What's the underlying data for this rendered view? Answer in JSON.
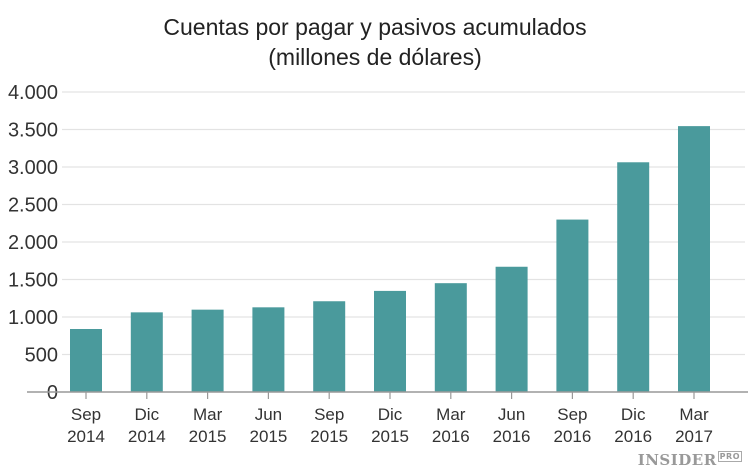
{
  "chart_data": {
    "type": "bar",
    "title": [
      "Cuentas por pagar y pasivos acumulados",
      "(millones de dólares)"
    ],
    "categories": [
      [
        "Sep",
        "2014"
      ],
      [
        "Dic",
        "2014"
      ],
      [
        "Mar",
        "2015"
      ],
      [
        "Jun",
        "2015"
      ],
      [
        "Sep",
        "2015"
      ],
      [
        "Dic",
        "2015"
      ],
      [
        "Mar",
        "2016"
      ],
      [
        "Jun",
        "2016"
      ],
      [
        "Sep",
        "2016"
      ],
      [
        "Dic",
        "2016"
      ],
      [
        "Mar",
        "2017"
      ]
    ],
    "values": [
      840,
      1062,
      1098,
      1129,
      1210,
      1348,
      1451,
      1670,
      2299,
      3063,
      3545
    ],
    "ylim": [
      0,
      4000
    ],
    "yticks": [
      0,
      500,
      1000,
      1500,
      2000,
      2500,
      3000,
      3500,
      4000
    ],
    "ytick_labels": [
      "0",
      "500",
      "1.000",
      "1.500",
      "2.000",
      "2.500",
      "3.000",
      "3.500",
      "4.000"
    ],
    "grid": true,
    "bar_color": "#4a9a9c",
    "xlabel": "",
    "ylabel": ""
  },
  "logo": {
    "main": "INSIDER",
    "sup": "PRO"
  }
}
